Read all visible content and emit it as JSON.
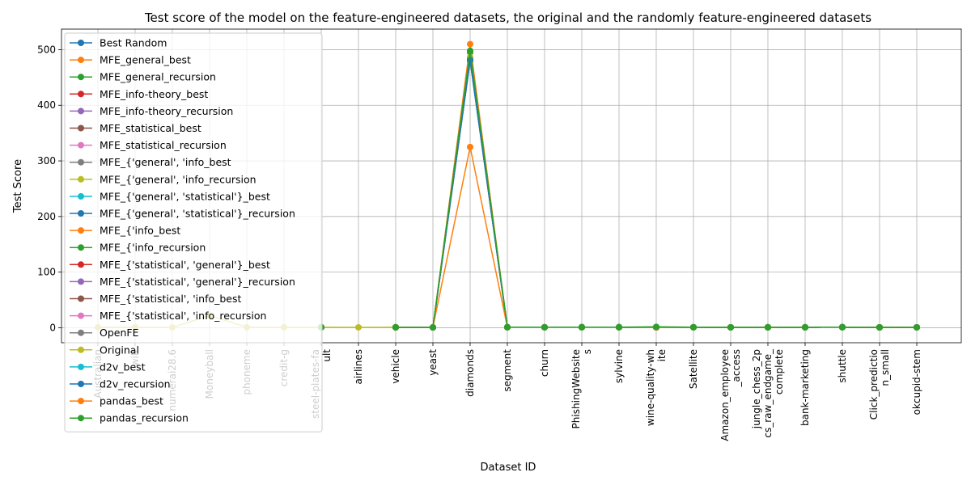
{
  "chart_data": {
    "type": "line",
    "title": "Test score of the model on the feature-engineered datasets, the original and the randomly feature-engineered datasets",
    "xlabel": "Dataset ID",
    "ylabel": "Test Score",
    "ylim": [
      -27,
      537
    ],
    "yticks": [
      0,
      100,
      200,
      300,
      400,
      500
    ],
    "grid": true,
    "legend_position": "upper-left",
    "categories": [
      "Australian",
      "wilt",
      "numerai28.6",
      "Moneyball",
      "phoneme",
      "credit-g",
      "steel-plates-fault",
      "airlines",
      "vehicle",
      "yeast",
      "diamonds",
      "segment",
      "churn",
      "PhishingWebsites",
      "sylvine",
      "wine-quality-white",
      "Satellite",
      "Amazon_employee_access",
      "jungle_chess_2pcs_raw_endgame_complete",
      "bank-marketing",
      "shuttle",
      "Click_prediction_small",
      "okcupid-stem"
    ],
    "tick_labels": [
      [
        "Australian"
      ],
      [
        "wilt"
      ],
      [
        "numerai28.6"
      ],
      [
        "Moneyball"
      ],
      [
        "phoneme"
      ],
      [
        "credit-g"
      ],
      [
        "steel-plates-fa",
        "ult"
      ],
      [
        "airlines"
      ],
      [
        "vehicle"
      ],
      [
        "yeast"
      ],
      [
        "diamonds"
      ],
      [
        "segment"
      ],
      [
        "churn"
      ],
      [
        "PhishingWebsite",
        "s"
      ],
      [
        "sylvine"
      ],
      [
        "wine-quality-wh",
        "ite"
      ],
      [
        "Satellite"
      ],
      [
        "Amazon_employee",
        "_access"
      ],
      [
        "jungle_chess_2p",
        "cs_raw_endgame_",
        "complete"
      ],
      [
        "bank-marketing"
      ],
      [
        "shuttle"
      ],
      [
        "Click_predictio",
        "n_small"
      ],
      [
        "okcupid-stem"
      ]
    ],
    "series": [
      {
        "name": "Best Random",
        "color": "#1f77b4",
        "values": [
          null,
          null,
          null,
          null,
          null,
          null,
          0.85,
          null,
          0.72,
          0.58,
          480,
          0.9,
          0.87,
          0.95,
          0.92,
          0.6,
          0.85,
          0.7,
          0.8,
          0.8,
          0.99,
          0.6,
          0.7
        ]
      },
      {
        "name": "MFE_general_best",
        "color": "#ff7f0e",
        "values": [
          null,
          null,
          null,
          null,
          null,
          null,
          0.85,
          null,
          0.74,
          0.58,
          510,
          0.91,
          0.88,
          0.95,
          0.92,
          0.62,
          0.86,
          0.7,
          0.8,
          0.8,
          0.99,
          0.6,
          0.7
        ]
      },
      {
        "name": "MFE_general_recursion",
        "color": "#2ca02c",
        "values": [
          null,
          null,
          null,
          null,
          null,
          null,
          0.84,
          null,
          0.73,
          0.57,
          495,
          0.9,
          0.87,
          0.95,
          0.92,
          0.61,
          0.85,
          0.7,
          0.8,
          0.8,
          0.99,
          0.6,
          0.7
        ]
      },
      {
        "name": "MFE_info-theory_best",
        "color": "#d62728",
        "values": [
          null,
          null,
          null,
          null,
          null,
          null,
          0.85,
          null,
          0.72,
          0.58,
          485,
          0.9,
          0.87,
          0.95,
          0.92,
          0.6,
          0.85,
          0.7,
          0.8,
          0.8,
          0.99,
          0.6,
          0.7
        ]
      },
      {
        "name": "MFE_info-theory_recursion",
        "color": "#9467bd",
        "values": [
          null,
          null,
          null,
          null,
          null,
          null,
          0.85,
          null,
          0.72,
          0.58,
          483,
          0.9,
          0.87,
          0.95,
          0.92,
          0.6,
          0.85,
          0.7,
          0.8,
          0.8,
          0.99,
          0.6,
          0.7
        ]
      },
      {
        "name": "MFE_statistical_best",
        "color": "#8c564b",
        "values": [
          null,
          null,
          null,
          null,
          null,
          null,
          0.85,
          null,
          0.72,
          0.58,
          482,
          0.9,
          0.87,
          0.95,
          0.92,
          0.6,
          0.85,
          0.7,
          0.8,
          0.8,
          0.99,
          0.6,
          0.7
        ]
      },
      {
        "name": "MFE_statistical_recursion",
        "color": "#e377c2",
        "values": [
          null,
          null,
          null,
          null,
          null,
          null,
          0.85,
          null,
          0.72,
          0.58,
          481,
          0.9,
          0.87,
          0.95,
          0.92,
          0.6,
          0.85,
          0.7,
          0.8,
          0.8,
          0.99,
          0.6,
          0.7
        ]
      },
      {
        "name": "MFE_{'general', 'info_best",
        "color": "#7f7f7f",
        "values": [
          null,
          null,
          null,
          null,
          null,
          null,
          0.85,
          null,
          0.72,
          0.58,
          484,
          0.9,
          0.87,
          0.95,
          0.92,
          0.6,
          0.85,
          0.7,
          0.8,
          0.8,
          0.99,
          0.6,
          0.7
        ]
      },
      {
        "name": "MFE_{'general', 'info_recursion",
        "color": "#bcbd22",
        "values": [
          null,
          null,
          null,
          null,
          null,
          null,
          0.85,
          null,
          0.72,
          0.58,
          486,
          0.9,
          0.87,
          0.95,
          0.92,
          0.6,
          0.85,
          0.7,
          0.8,
          0.8,
          0.99,
          0.6,
          0.7
        ]
      },
      {
        "name": "MFE_{'general', 'statistical'}_best",
        "color": "#17becf",
        "values": [
          null,
          null,
          null,
          null,
          null,
          null,
          0.85,
          null,
          0.72,
          0.58,
          483,
          0.9,
          0.87,
          0.95,
          0.92,
          0.6,
          0.85,
          0.7,
          0.8,
          0.8,
          0.99,
          0.6,
          0.7
        ]
      },
      {
        "name": "MFE_{'general', 'statistical'}_recursion",
        "color": "#1f77b4",
        "values": [
          null,
          null,
          null,
          null,
          null,
          null,
          0.85,
          null,
          0.72,
          0.58,
          482,
          0.9,
          0.87,
          0.95,
          0.92,
          0.6,
          0.85,
          0.7,
          0.8,
          0.8,
          0.99,
          0.6,
          0.7
        ]
      },
      {
        "name": "MFE_{'info_best",
        "color": "#ff7f0e",
        "values": [
          null,
          null,
          null,
          null,
          null,
          null,
          0.85,
          null,
          0.72,
          0.58,
          485,
          0.9,
          0.87,
          0.95,
          0.92,
          0.6,
          0.85,
          0.7,
          0.8,
          0.8,
          0.99,
          0.6,
          0.7
        ]
      },
      {
        "name": "MFE_{'info_recursion",
        "color": "#2ca02c",
        "values": [
          null,
          null,
          null,
          null,
          null,
          null,
          0.85,
          null,
          0.72,
          0.58,
          484,
          0.9,
          0.87,
          0.95,
          0.92,
          0.6,
          0.85,
          0.7,
          0.8,
          0.8,
          0.99,
          0.6,
          0.7
        ]
      },
      {
        "name": "MFE_{'statistical', 'general'}_best",
        "color": "#d62728",
        "values": [
          null,
          null,
          null,
          null,
          null,
          null,
          0.85,
          null,
          0.72,
          0.58,
          483,
          0.9,
          0.87,
          0.95,
          0.92,
          0.6,
          0.85,
          0.7,
          0.8,
          0.8,
          0.99,
          0.6,
          0.7
        ]
      },
      {
        "name": "MFE_{'statistical', 'general'}_recursion",
        "color": "#9467bd",
        "values": [
          null,
          null,
          null,
          null,
          null,
          null,
          0.85,
          null,
          0.72,
          0.58,
          482,
          0.9,
          0.87,
          0.95,
          0.92,
          0.6,
          0.85,
          0.7,
          0.8,
          0.8,
          0.99,
          0.6,
          0.7
        ]
      },
      {
        "name": "MFE_{'statistical', 'info_best",
        "color": "#8c564b",
        "values": [
          null,
          null,
          null,
          null,
          null,
          null,
          0.85,
          null,
          0.72,
          0.58,
          484,
          0.9,
          0.87,
          0.95,
          0.92,
          0.6,
          0.85,
          0.7,
          0.8,
          0.8,
          0.99,
          0.6,
          0.7
        ]
      },
      {
        "name": "MFE_{'statistical', 'info_recursion",
        "color": "#e377c2",
        "values": [
          null,
          null,
          null,
          null,
          null,
          null,
          0.85,
          null,
          0.72,
          0.58,
          483,
          0.9,
          0.87,
          0.95,
          0.92,
          0.6,
          0.85,
          0.7,
          0.8,
          0.8,
          0.99,
          0.6,
          0.7
        ]
      },
      {
        "name": "OpenFE",
        "color": "#7f7f7f",
        "values": [
          null,
          null,
          null,
          null,
          null,
          null,
          0.85,
          null,
          0.72,
          0.58,
          481,
          0.9,
          0.87,
          0.95,
          0.92,
          0.6,
          0.85,
          0.7,
          0.8,
          0.8,
          0.99,
          0.6,
          0.7
        ]
      },
      {
        "name": "Original",
        "color": "#bcbd22",
        "values": [
          0.85,
          0.98,
          0.52,
          22,
          0.89,
          0.75,
          0.73,
          0.65,
          0.72,
          0.58,
          487,
          0.91,
          0.87,
          0.95,
          0.92,
          0.6,
          0.85,
          0.7,
          0.8,
          0.8,
          0.99,
          0.6,
          0.7
        ]
      },
      {
        "name": "d2v_best",
        "color": "#17becf",
        "values": [
          null,
          null,
          null,
          null,
          null,
          null,
          0.85,
          null,
          0.72,
          0.58,
          482,
          0.9,
          0.87,
          0.95,
          0.92,
          0.6,
          0.85,
          0.7,
          0.8,
          0.8,
          0.99,
          0.6,
          0.7
        ]
      },
      {
        "name": "d2v_recursion",
        "color": "#1f77b4",
        "values": [
          null,
          null,
          null,
          null,
          null,
          null,
          0.85,
          null,
          0.72,
          0.58,
          481,
          0.9,
          0.87,
          0.95,
          0.92,
          0.6,
          0.85,
          0.7,
          0.8,
          0.8,
          0.99,
          0.6,
          0.7
        ]
      },
      {
        "name": "pandas_best",
        "color": "#ff7f0e",
        "values": [
          null,
          null,
          null,
          null,
          null,
          null,
          0.85,
          null,
          0.72,
          0.58,
          325,
          0.9,
          0.87,
          0.95,
          0.92,
          0.6,
          0.85,
          0.7,
          0.8,
          0.8,
          0.99,
          0.6,
          0.7
        ]
      },
      {
        "name": "pandas_recursion",
        "color": "#2ca02c",
        "values": [
          null,
          null,
          null,
          null,
          null,
          null,
          0.84,
          null,
          0.72,
          0.58,
          498,
          0.9,
          0.87,
          0.95,
          0.92,
          1.6,
          0.85,
          0.7,
          0.8,
          0.8,
          0.99,
          0.6,
          0.7
        ]
      }
    ]
  }
}
